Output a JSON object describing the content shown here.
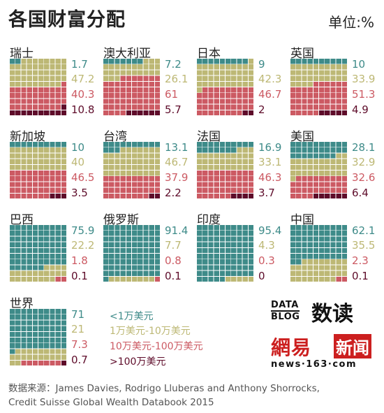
{
  "title": "各国财富分配",
  "unit": "单位:%",
  "colors": {
    "lt_1": "#3e8b89",
    "w1_10": "#bdb875",
    "w10_100": "#cc5a63",
    "gt_100": "#5e0c2a"
  },
  "chart_data": {
    "type": "waffle",
    "grid": "10x10",
    "categories": [
      "<1万美元",
      "1万美元-10万美元",
      "10万美元-100万美元",
      ">100万美元"
    ],
    "countries": [
      {
        "name": "瑞士",
        "values": [
          "1.7",
          "47.2",
          "40.3",
          "10.8"
        ]
      },
      {
        "name": "澳大利亚",
        "values": [
          "7.2",
          "26.1",
          "61",
          "5.7"
        ]
      },
      {
        "name": "日本",
        "values": [
          "9",
          "42.3",
          "46.7",
          "2"
        ]
      },
      {
        "name": "英国",
        "values": [
          "10",
          "33.9",
          "51.3",
          "4.9"
        ]
      },
      {
        "name": "新加坡",
        "values": [
          "10",
          "40",
          "46.5",
          "3.5"
        ]
      },
      {
        "name": "台湾",
        "values": [
          "13.1",
          "46.7",
          "37.9",
          "2.2"
        ]
      },
      {
        "name": "法国",
        "values": [
          "16.9",
          "33.1",
          "46.3",
          "3.7"
        ]
      },
      {
        "name": "美国",
        "values": [
          "28.1",
          "32.9",
          "32.6",
          "6.4"
        ]
      },
      {
        "name": "巴西",
        "values": [
          "75.9",
          "22.2",
          "1.8",
          "0.1"
        ]
      },
      {
        "name": "俄罗斯",
        "values": [
          "91.4",
          "7.7",
          "0.8",
          "0.1"
        ]
      },
      {
        "name": "印度",
        "values": [
          "95.4",
          "4.3",
          "0.3",
          "0"
        ]
      },
      {
        "name": "中国",
        "values": [
          "62.1",
          "35.5",
          "2.3",
          "0.1"
        ]
      },
      {
        "name": "世界",
        "values": [
          "71",
          "21",
          "7.3",
          "0.7"
        ]
      }
    ]
  },
  "legend": [
    "<1万美元",
    "1万美元-10万美元",
    "10万美元-100万美元",
    ">100万美元"
  ],
  "logo": {
    "data": "DATA",
    "blog": "BLOG",
    "dushu": "数读",
    "wangyi": "網易",
    "xinwen": "新闻",
    "url": "news·163·com"
  },
  "source_line1": "数据来源：James Davies, Rodrigo Lluberas and Anthony Shorrocks,",
  "source_line2": "Credit Suisse Global Wealth Databook 2015"
}
